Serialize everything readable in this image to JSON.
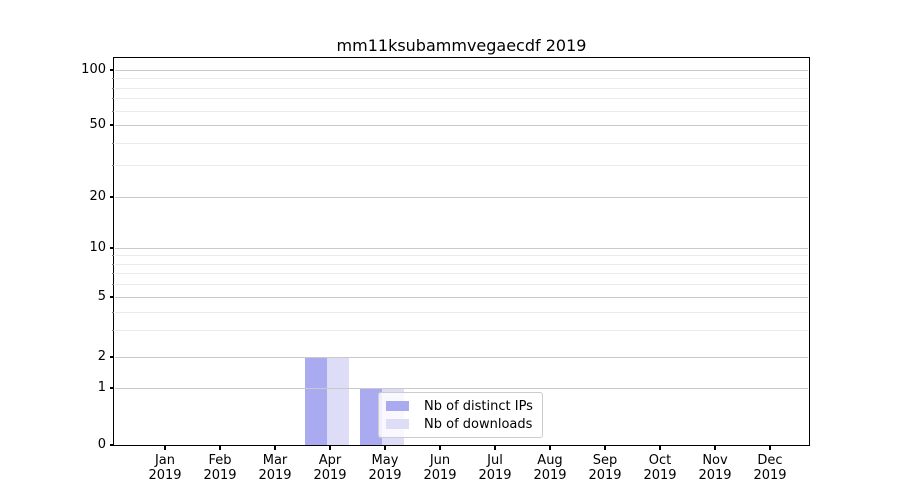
{
  "title": "mm11ksubammvegaecdf 2019",
  "colors": {
    "series_distinct_ips": "#aaaaf0",
    "series_downloads": "#ddddf8",
    "grid_major": "#c9c9c9",
    "grid_minor": "#ebebeb",
    "axis_line": "#000000",
    "text": "#000000",
    "legend_border": "#cccccc",
    "legend_background": "rgba(255,255,255,0.8)"
  },
  "chart_data": {
    "type": "bar",
    "title": "mm11ksubammvegaecdf 2019",
    "x": {
      "months": [
        "Jan",
        "Feb",
        "Mar",
        "Apr",
        "May",
        "Jun",
        "Jul",
        "Aug",
        "Sep",
        "Oct",
        "Nov",
        "Dec"
      ],
      "year": "2019"
    },
    "categories": [
      "Jan 2019",
      "Feb 2019",
      "Mar 2019",
      "Apr 2019",
      "May 2019",
      "Jun 2019",
      "Jul 2019",
      "Aug 2019",
      "Sep 2019",
      "Oct 2019",
      "Nov 2019",
      "Dec 2019"
    ],
    "series": [
      {
        "name": "Nb of distinct IPs",
        "color": "#aaaaf0",
        "values": [
          0,
          0,
          0,
          2,
          1,
          0,
          0,
          0,
          0,
          0,
          0,
          0
        ]
      },
      {
        "name": "Nb of downloads",
        "color": "#ddddf8",
        "values": [
          0,
          0,
          0,
          2,
          1,
          0,
          0,
          0,
          0,
          0,
          0,
          0
        ]
      }
    ],
    "yaxis": {
      "scale": "symlog",
      "tick_values": [
        0,
        1,
        2,
        5,
        10,
        20,
        50,
        100
      ],
      "minor_gridlines": [
        3,
        4,
        6,
        7,
        8,
        9,
        30,
        40,
        60,
        70,
        80,
        90
      ],
      "ylim": [
        0,
        115
      ],
      "pixel_anchors": {
        "0": 387,
        "1": 330,
        "2": 299,
        "5": 239,
        "10": 190,
        "20": 139,
        "50": 67,
        "100": 12
      }
    },
    "grid": true,
    "legend": {
      "position": "lower-center",
      "labels": [
        "Nb of distinct IPs",
        "Nb of downloads"
      ]
    }
  }
}
